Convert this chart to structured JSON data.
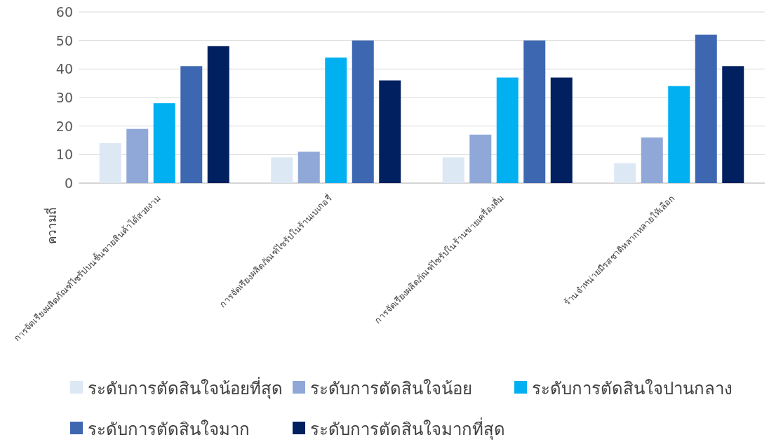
{
  "chart_data": {
    "type": "bar",
    "ylabel": "ความถี่",
    "categories": [
      "การจัดเรียงผลิตภัณฑ์ไซรัปบนชั้นขายสินค้าได้สวยงาม",
      "การจัดเรียงผลิตภัณฑ์ไซรัปในร้านเบเกอรี่",
      "การจัดเรียงผลิตภัณฑ์ไซรัปในร้านขายเครื่องดื่ม",
      "ร้านจำหน่ายมีรสชาติหลากหลายให้เลือก"
    ],
    "series": [
      {
        "name": "ระดับการตัดสินใจน้อยที่สุด",
        "color": "#dde8f5",
        "values": [
          14,
          9,
          9,
          7
        ]
      },
      {
        "name": "ระดับการตัดสินใจน้อย",
        "color": "#8fa8d8",
        "values": [
          19,
          11,
          17,
          16
        ]
      },
      {
        "name": "ระดับการตัดสินใจปานกลาง",
        "color": "#00b0f0",
        "values": [
          28,
          44,
          37,
          34
        ]
      },
      {
        "name": "ระดับการตัดสินใจมาก",
        "color": "#3e67b1",
        "values": [
          41,
          50,
          50,
          52
        ]
      },
      {
        "name": "ระดับการตัดสินใจมากที่สุด",
        "color": "#002060",
        "values": [
          48,
          36,
          37,
          41
        ]
      }
    ],
    "ylim": [
      0,
      60
    ],
    "yticks": [
      0,
      10,
      20,
      30,
      40,
      50,
      60
    ],
    "grid": "y",
    "legend": "bottom"
  }
}
